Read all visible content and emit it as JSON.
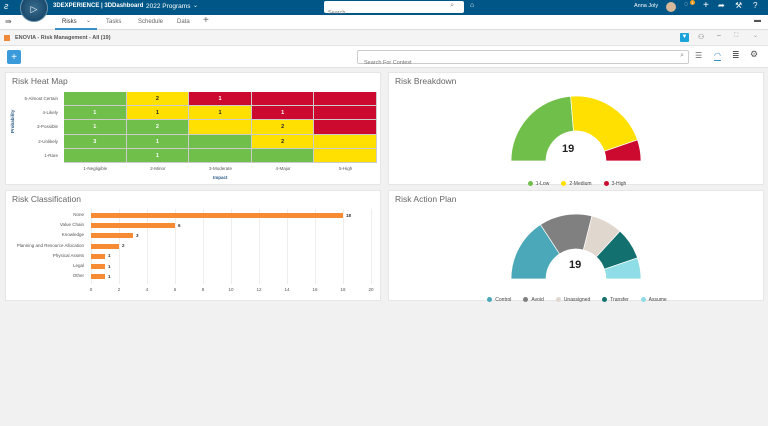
{
  "topbar": {
    "brand": "3DEXPERIENCE | 3DDashboard",
    "dashboard": "2022 Programs",
    "search_placeholder": "Search",
    "user": "Anna Joly",
    "notif_count": "1"
  },
  "tabs": [
    {
      "label": "Risks",
      "active": true
    },
    {
      "label": "Tasks"
    },
    {
      "label": "Schedule"
    },
    {
      "label": "Data"
    }
  ],
  "breadcrumb": "ENOVIA - Risk Management - All (19)",
  "toolbar": {
    "add_label": "+",
    "search_placeholder": "Search For Context"
  },
  "colors": {
    "low": "#70bf4a",
    "medium": "#ffe000",
    "high": "#cc0a2f",
    "accent": "#005686"
  },
  "chart_data": [
    {
      "type": "heatmap",
      "title": "Risk Heat Map",
      "xlabel": "Impact",
      "ylabel": "Probability",
      "x_categories": [
        "1-Negligible",
        "2-Minor",
        "3-Moderate",
        "4-Major",
        "5-High"
      ],
      "y_categories": [
        "5-Almost Certain",
        "4-Likely",
        "3-Possible",
        "2-Unlikely",
        "1-Rare"
      ],
      "levels": [
        [
          "low",
          "medium",
          "high",
          "high",
          "high"
        ],
        [
          "low",
          "medium",
          "medium",
          "high",
          "high"
        ],
        [
          "low",
          "low",
          "medium",
          "medium",
          "high"
        ],
        [
          "low",
          "low",
          "low",
          "medium",
          "medium"
        ],
        [
          "low",
          "low",
          "low",
          "low",
          "medium"
        ]
      ],
      "values": [
        [
          null,
          2,
          1,
          null,
          null
        ],
        [
          1,
          1,
          1,
          1,
          null
        ],
        [
          1,
          2,
          null,
          2,
          null
        ],
        [
          3,
          1,
          null,
          2,
          null
        ],
        [
          null,
          1,
          null,
          null,
          null
        ]
      ]
    },
    {
      "type": "pie",
      "title": "Risk Breakdown",
      "style": "semi-donut",
      "total": "19",
      "categories": [
        "1-Low",
        "2-Medium",
        "3-High"
      ],
      "values": [
        9,
        8,
        2
      ],
      "colors": [
        "#70bf4a",
        "#ffe000",
        "#cc0a2f"
      ]
    },
    {
      "type": "bar",
      "orientation": "horizontal",
      "title": "Risk Classification",
      "categories": [
        "None",
        "Value Chain",
        "Knowledge",
        "Planning and Resource Allocation",
        "Physical Assets",
        "Legal",
        "Other"
      ],
      "values": [
        18,
        6,
        3,
        2,
        1,
        1,
        1
      ],
      "xlim": [
        0,
        20
      ],
      "ticks": [
        0,
        2,
        4,
        6,
        8,
        10,
        12,
        14,
        16,
        18,
        20
      ],
      "color": "#f68b33",
      "grid": true
    },
    {
      "type": "pie",
      "title": "Risk Action Plan",
      "style": "semi-donut",
      "total": "19",
      "categories": [
        "Control",
        "Avoid",
        "Unassigned",
        "Transfer",
        "Assume"
      ],
      "values": [
        6,
        5,
        3,
        3,
        2
      ],
      "colors": [
        "#4ba8b8",
        "#808080",
        "#e0d7cf",
        "#12716e",
        "#8fdde6"
      ]
    }
  ]
}
